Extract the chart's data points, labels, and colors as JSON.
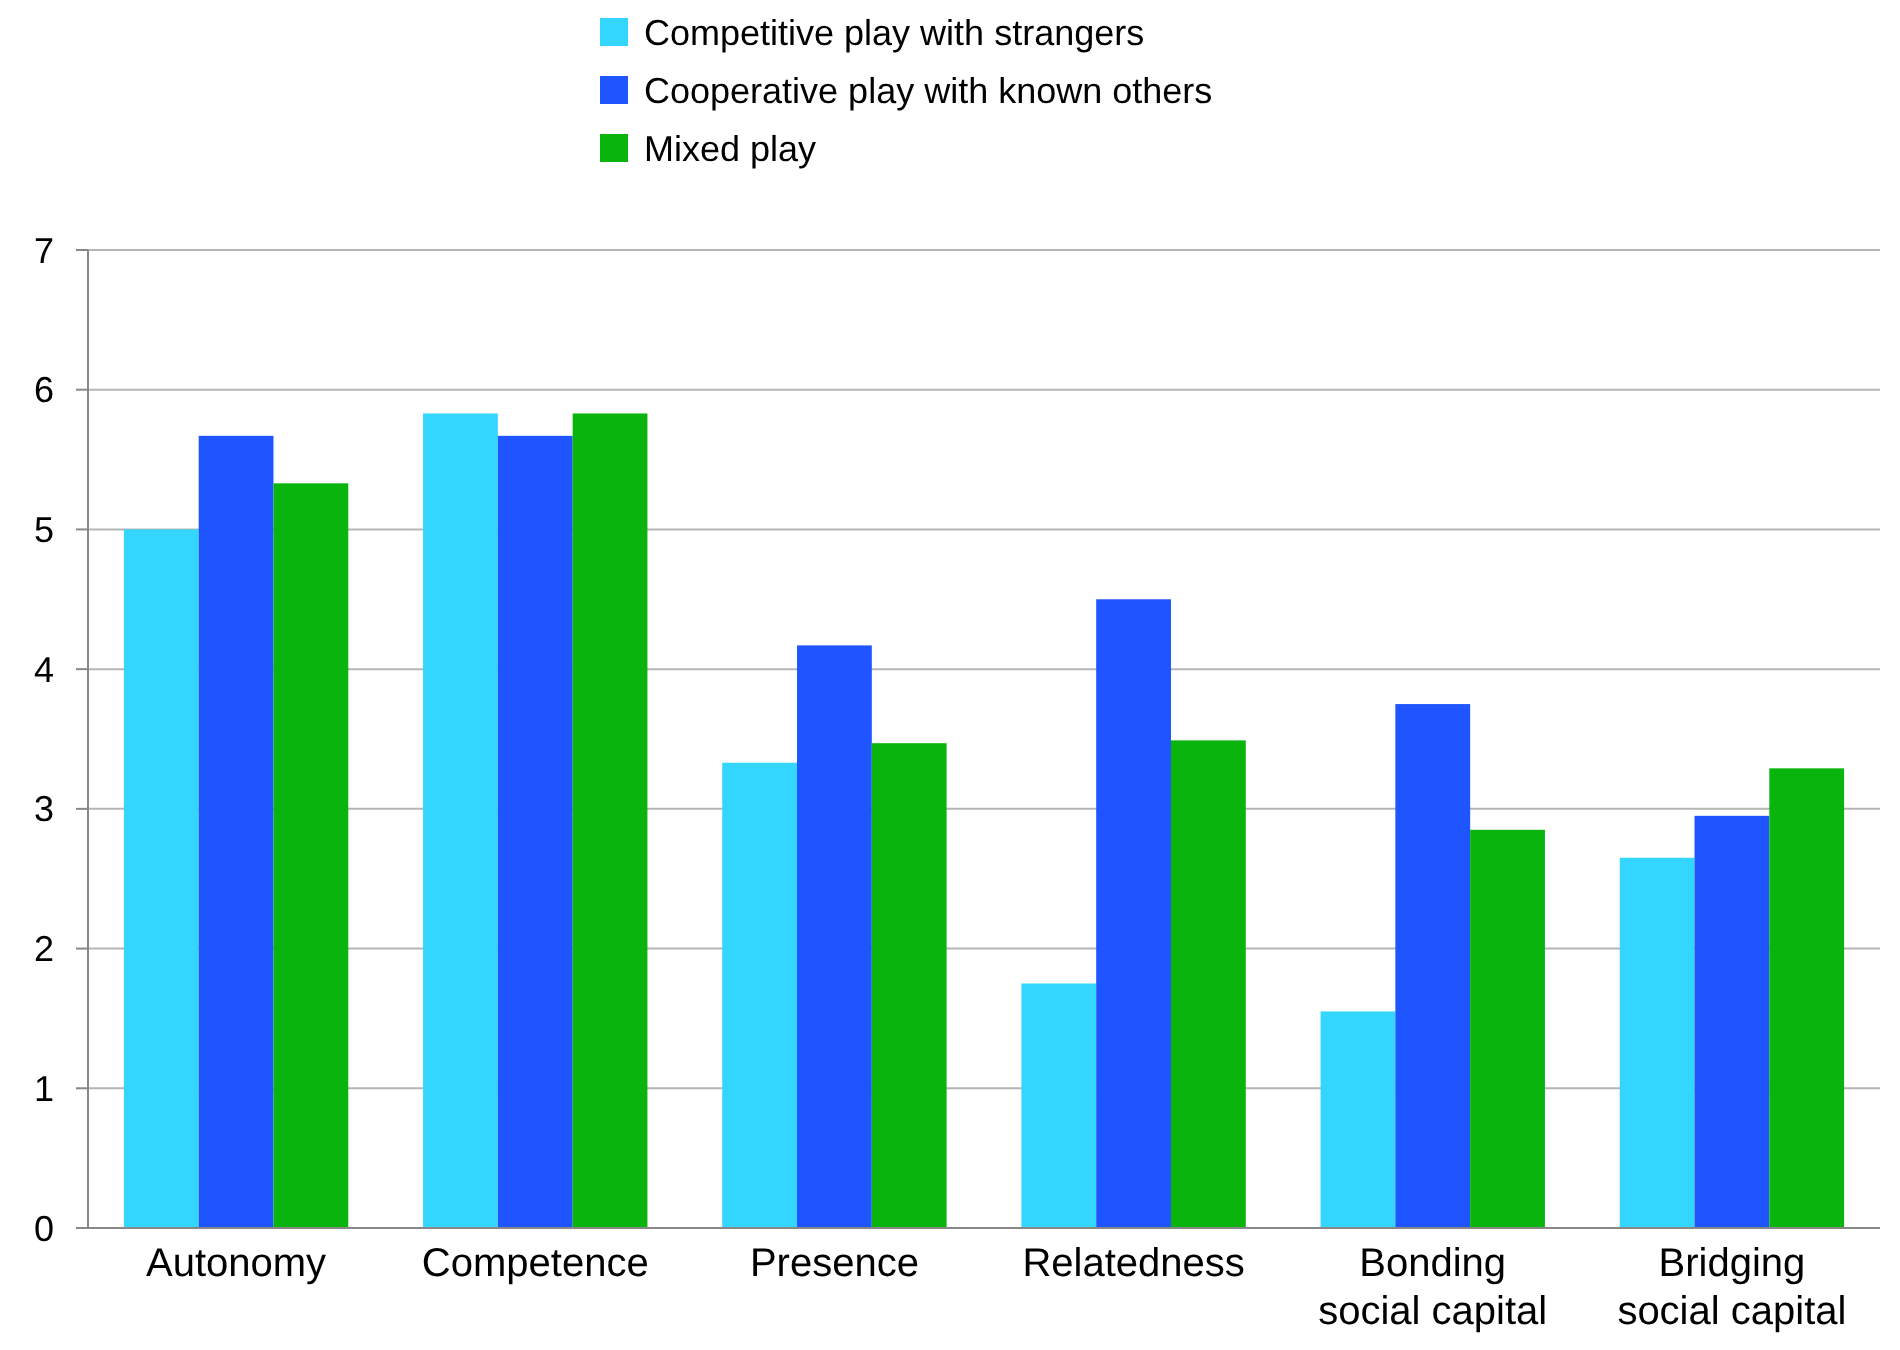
{
  "chart_data": {
    "type": "bar",
    "categories": [
      "Autonomy",
      "Competence",
      "Presence",
      "Relatedness",
      "Bonding\nsocial capital",
      "Bridging\nsocial capital"
    ],
    "series": [
      {
        "name": "Competitive play with strangers",
        "color": "#33d6ff",
        "values": [
          5.0,
          5.83,
          3.33,
          1.75,
          1.55,
          2.65
        ]
      },
      {
        "name": "Cooperative play with known others",
        "color": "#1f55ff",
        "values": [
          5.67,
          5.67,
          4.17,
          4.5,
          3.75,
          2.95
        ]
      },
      {
        "name": "Mixed play",
        "color": "#09b50d",
        "values": [
          5.33,
          5.83,
          3.47,
          3.49,
          2.85,
          3.29
        ]
      }
    ],
    "ylim": [
      0,
      7
    ],
    "yticks": [
      0,
      1,
      2,
      3,
      4,
      5,
      6,
      7
    ],
    "grid": "y",
    "legend": "top"
  }
}
